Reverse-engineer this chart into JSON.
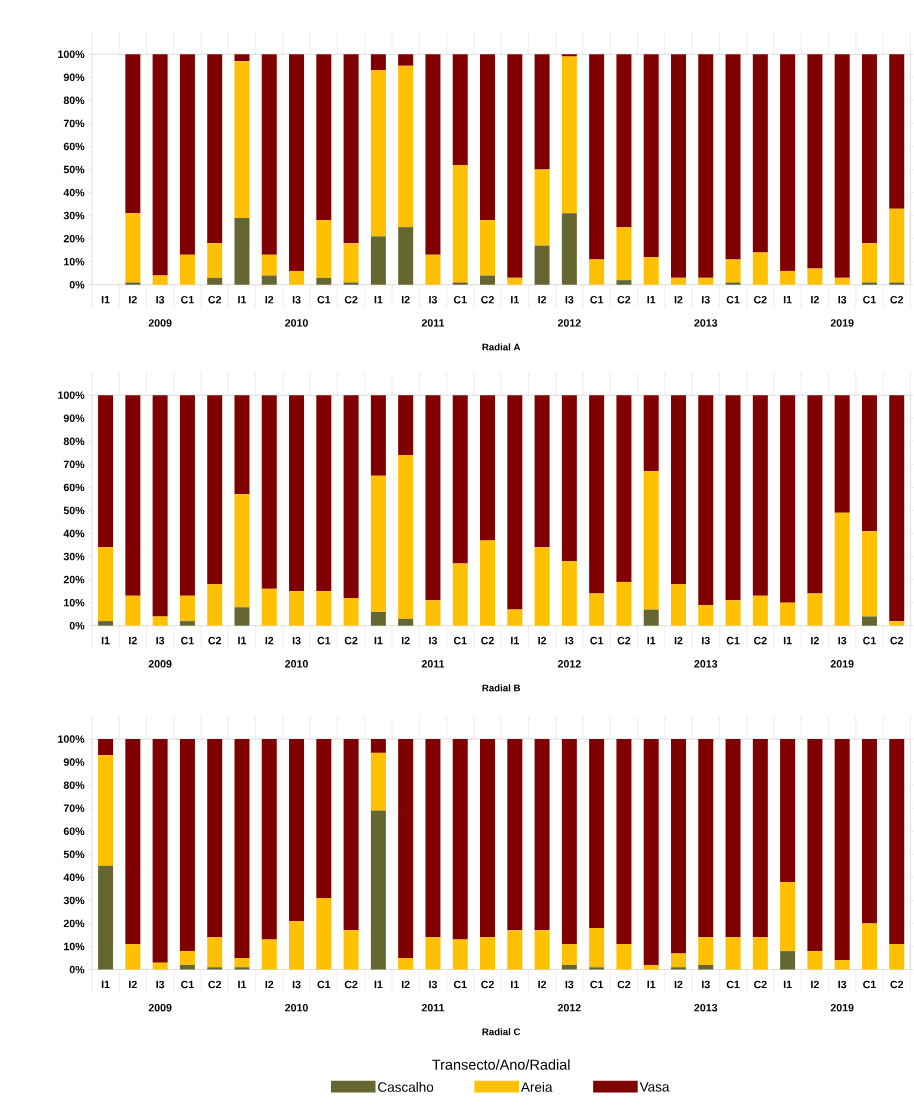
{
  "chart_data": [
    {
      "type": "bar",
      "stacked": true,
      "xlabel": "Radial A",
      "categories": [
        "I1",
        "I2",
        "I3",
        "C1",
        "C2",
        "I1",
        "I2",
        "I3",
        "C1",
        "C2",
        "I1",
        "I2",
        "I3",
        "C1",
        "C2",
        "I1",
        "I2",
        "I3",
        "C1",
        "C2",
        "I1",
        "I2",
        "I3",
        "C1",
        "C2",
        "I1",
        "I2",
        "I3",
        "C1",
        "C2"
      ],
      "annotations": [
        "2009",
        "2010",
        "2011",
        "2012",
        "2013",
        "2019"
      ],
      "ylim": [
        0,
        100
      ],
      "yticks": [
        {
          "value": 0,
          "label": "0%"
        },
        {
          "value": 10,
          "label": "10%"
        },
        {
          "value": 20,
          "label": "20%"
        },
        {
          "value": 30,
          "label": "30%"
        },
        {
          "value": 40,
          "label": "40%"
        },
        {
          "value": 50,
          "label": "50%"
        },
        {
          "value": 60,
          "label": "60%"
        },
        {
          "value": 70,
          "label": "70%"
        },
        {
          "value": 80,
          "label": "80%"
        },
        {
          "value": 90,
          "label": "90%"
        },
        {
          "value": 100,
          "label": "100%"
        }
      ],
      "series": [
        {
          "color": "#666633",
          "values": [
            null,
            1,
            0,
            0,
            3,
            29,
            4,
            0,
            3,
            1,
            21,
            25,
            0,
            1,
            4,
            0,
            17,
            31,
            0,
            2,
            0,
            0,
            0,
            1,
            0,
            0,
            0,
            0,
            1,
            1
          ]
        },
        {
          "color": "#ffc000",
          "values": [
            null,
            30,
            4,
            13,
            15,
            68,
            9,
            6,
            25,
            17,
            72,
            70,
            13,
            51,
            24,
            3,
            33,
            68,
            11,
            23,
            12,
            3,
            3,
            10,
            14,
            6,
            7,
            3,
            17,
            32
          ]
        },
        {
          "color": "#800000",
          "values": [
            null,
            69,
            96,
            87,
            82,
            3,
            87,
            94,
            72,
            82,
            7,
            5,
            87,
            48,
            72,
            97,
            50,
            1,
            89,
            75,
            88,
            97,
            97,
            89,
            86,
            94,
            93,
            97,
            82,
            67
          ]
        }
      ]
    },
    {
      "type": "bar",
      "stacked": true,
      "xlabel": "Radial B",
      "categories": [
        "I1",
        "I2",
        "I3",
        "C1",
        "C2",
        "I1",
        "I2",
        "I3",
        "C1",
        "C2",
        "I1",
        "I2",
        "I3",
        "C1",
        "C2",
        "I1",
        "I2",
        "I3",
        "C1",
        "C2",
        "I1",
        "I2",
        "I3",
        "C1",
        "C2",
        "I1",
        "I2",
        "I3",
        "C1",
        "C2"
      ],
      "annotations": [
        "2009",
        "2010",
        "2011",
        "2012",
        "2013",
        "2019"
      ],
      "ylim": [
        0,
        100
      ],
      "yticks": [
        {
          "value": 0,
          "label": "0%"
        },
        {
          "value": 10,
          "label": "10%"
        },
        {
          "value": 20,
          "label": "20%"
        },
        {
          "value": 30,
          "label": "30%"
        },
        {
          "value": 40,
          "label": "40%"
        },
        {
          "value": 50,
          "label": "50%"
        },
        {
          "value": 60,
          "label": "60%"
        },
        {
          "value": 70,
          "label": "70%"
        },
        {
          "value": 80,
          "label": "80%"
        },
        {
          "value": 90,
          "label": "90%"
        },
        {
          "value": 100,
          "label": "100%"
        }
      ],
      "series": [
        {
          "color": "#666633",
          "values": [
            2,
            0,
            0,
            2,
            0,
            8,
            0,
            0,
            0,
            0,
            6,
            3,
            0,
            0,
            0,
            0,
            0,
            0,
            0,
            0,
            7,
            0,
            0,
            0,
            0,
            0,
            0,
            0,
            4,
            0
          ]
        },
        {
          "color": "#ffc000",
          "values": [
            32,
            13,
            4,
            11,
            18,
            49,
            16,
            15,
            15,
            12,
            59,
            71,
            11,
            27,
            37,
            7,
            34,
            28,
            14,
            19,
            60,
            18,
            9,
            11,
            13,
            10,
            14,
            49,
            37,
            2
          ]
        },
        {
          "color": "#800000",
          "values": [
            66,
            87,
            96,
            87,
            82,
            43,
            84,
            85,
            85,
            88,
            35,
            26,
            89,
            73,
            63,
            93,
            66,
            72,
            86,
            81,
            33,
            82,
            91,
            89,
            87,
            90,
            86,
            51,
            59,
            98
          ]
        }
      ]
    },
    {
      "type": "bar",
      "stacked": true,
      "xlabel": "Radial C",
      "legend": "bottom",
      "legend_title": "Transecto/Ano/Radial",
      "categories": [
        "I1",
        "I2",
        "I3",
        "C1",
        "C2",
        "I1",
        "I2",
        "I3",
        "C1",
        "C2",
        "I1",
        "I2",
        "I3",
        "C1",
        "C2",
        "I1",
        "I2",
        "I3",
        "C1",
        "C2",
        "I1",
        "I2",
        "I3",
        "C1",
        "C2",
        "I1",
        "I2",
        "I3",
        "C1",
        "C2"
      ],
      "annotations": [
        "2009",
        "2010",
        "2011",
        "2012",
        "2013",
        "2019"
      ],
      "ylim": [
        0,
        100
      ],
      "yticks": [
        {
          "value": 0,
          "label": "0%"
        },
        {
          "value": 10,
          "label": "10%"
        },
        {
          "value": 20,
          "label": "20%"
        },
        {
          "value": 30,
          "label": "30%"
        },
        {
          "value": 40,
          "label": "40%"
        },
        {
          "value": 50,
          "label": "50%"
        },
        {
          "value": 60,
          "label": "60%"
        },
        {
          "value": 70,
          "label": "70%"
        },
        {
          "value": 80,
          "label": "80%"
        },
        {
          "value": 90,
          "label": "90%"
        },
        {
          "value": 100,
          "label": "100%"
        }
      ],
      "series": [
        {
          "name": "Cascalho",
          "color": "#666633",
          "values": [
            45,
            0,
            0,
            2,
            1,
            1,
            0,
            0,
            0,
            0,
            69,
            0,
            0,
            0,
            0,
            0,
            0,
            2,
            1,
            0,
            0,
            1,
            2,
            0,
            0,
            8,
            0,
            0,
            0,
            0
          ]
        },
        {
          "name": "Areia",
          "color": "#ffc000",
          "values": [
            48,
            11,
            3,
            6,
            13,
            4,
            13,
            21,
            31,
            17,
            25,
            5,
            14,
            13,
            14,
            17,
            17,
            9,
            17,
            11,
            2,
            6,
            12,
            14,
            14,
            30,
            8,
            4,
            20,
            11
          ]
        },
        {
          "name": "Vasa",
          "color": "#800000",
          "values": [
            7,
            89,
            97,
            92,
            86,
            95,
            87,
            79,
            69,
            83,
            6,
            95,
            86,
            87,
            86,
            83,
            83,
            89,
            82,
            89,
            98,
            93,
            86,
            86,
            86,
            62,
            92,
            96,
            80,
            89
          ]
        }
      ]
    }
  ]
}
